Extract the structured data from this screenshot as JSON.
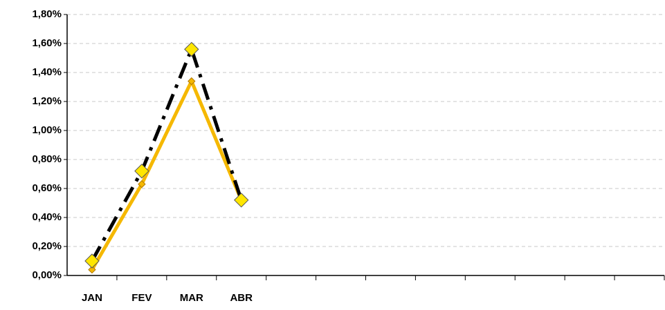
{
  "chart_data": {
    "type": "line",
    "categories": [
      "JAN",
      "FEV",
      "MAR",
      "ABR",
      null,
      null,
      null,
      null,
      null,
      null,
      null,
      null
    ],
    "series": [
      {
        "color": "#000000",
        "marker_color": "#ffe600",
        "values": [
          0.1,
          0.72,
          1.56,
          0.52,
          null,
          null,
          null,
          null,
          null,
          null,
          null,
          null
        ]
      },
      {
        "color": "#f5b800",
        "marker_color": "#f5b800",
        "values": [
          0.04,
          0.63,
          1.34,
          0.52,
          null,
          null,
          null,
          null,
          null,
          null,
          null,
          null
        ]
      }
    ],
    "ylim": [
      0,
      1.8
    ],
    "yticks": [
      {
        "value": 0,
        "label": "0,00%"
      },
      {
        "value": 0.2,
        "label": "0,20%"
      },
      {
        "value": 0.4,
        "label": "0,40%"
      },
      {
        "value": 0.6,
        "label": "0,60%"
      },
      {
        "value": 0.8,
        "label": "0,80%"
      },
      {
        "value": 1.0,
        "label": "1,00%"
      },
      {
        "value": 1.2,
        "label": "1,20%"
      },
      {
        "value": 1.4,
        "label": "1,40%"
      },
      {
        "value": 1.6,
        "label": "1,60%"
      },
      {
        "value": 1.8,
        "label": "1,80%"
      }
    ],
    "grid": true
  }
}
